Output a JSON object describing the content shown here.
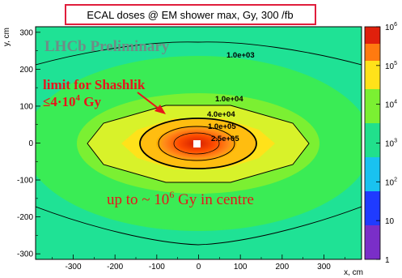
{
  "chart_data": {
    "type": "heatmap",
    "title": "ECAL doses @ EM shower max, Gy, 300 /fb",
    "xlabel": "x, cm",
    "ylabel": "y, cm",
    "xlim": [
      -390,
      390
    ],
    "ylim": [
      -315,
      315
    ],
    "x_ticks": [
      "-300",
      "-200",
      "-100",
      "0",
      "100",
      "200",
      "300"
    ],
    "y_ticks": [
      "300",
      "200",
      "100",
      "0",
      "-100",
      "-200",
      "-300"
    ],
    "colorscale": {
      "scale": "log",
      "range": [
        1,
        1000000
      ],
      "tick_labels": [
        "1",
        "10",
        "10",
        "10",
        "10",
        "10",
        "10"
      ],
      "tick_exponents": [
        "",
        "",
        "2",
        "3",
        "4",
        "5",
        "6"
      ]
    },
    "contours": [
      {
        "label": "1.0e+03",
        "value": 1000
      },
      {
        "label": "1.0e+04",
        "value": 10000
      },
      {
        "label": "4.0e+04",
        "value": 40000
      },
      {
        "label": "1.0e+05",
        "value": 100000
      },
      {
        "label": "2.5e+05",
        "value": 250000
      }
    ],
    "annotations": {
      "preliminary": "LHCb Preliminary",
      "limit_line1": "limit for Shashlik",
      "limit_line2_prefix": "≤4·10",
      "limit_line2_exp": "4",
      "limit_line2_suffix": " Gy",
      "centre_prefix": "up to ~ 10",
      "centre_exp": "6",
      "centre_suffix": " Gy in centre"
    },
    "grid": false,
    "legend": "colorbar-right"
  }
}
